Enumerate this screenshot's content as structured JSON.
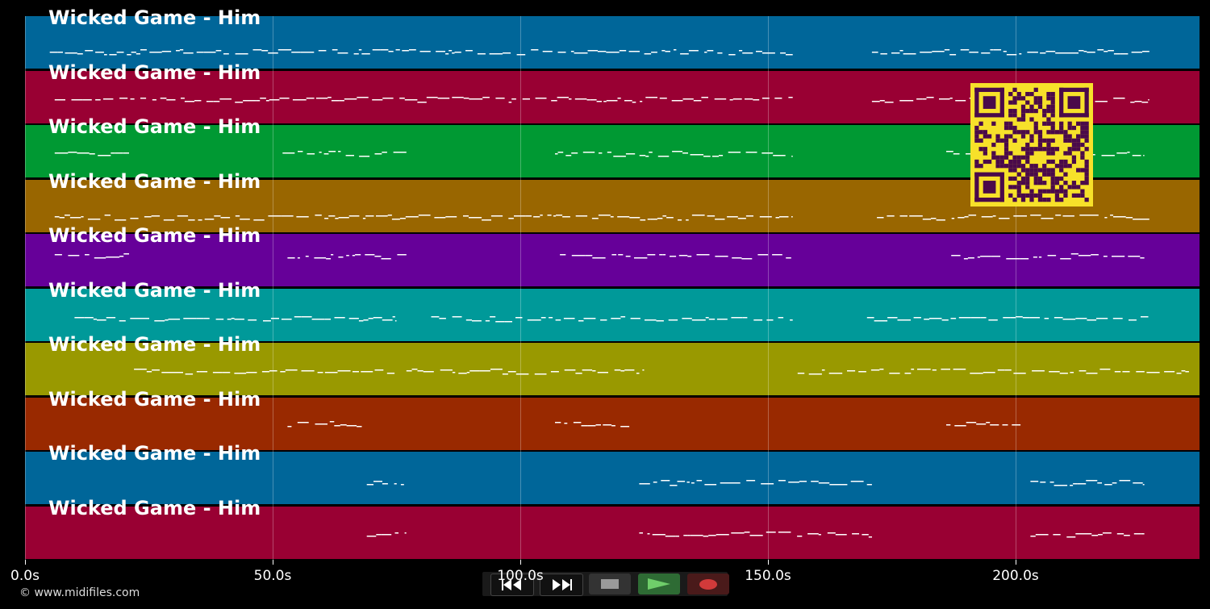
{
  "tracks": [
    {
      "title": "Wicked Game - Him",
      "color": "#006699"
    },
    {
      "title": "Wicked Game - Him",
      "color": "#990033"
    },
    {
      "title": "Wicked Game - Him",
      "color": "#009933"
    },
    {
      "title": "Wicked Game - Him",
      "color": "#996600"
    },
    {
      "title": "Wicked Game - Him",
      "color": "#660099"
    },
    {
      "title": "Wicked Game - Him",
      "color": "#009999"
    },
    {
      "title": "Wicked Game - Him",
      "color": "#999900"
    },
    {
      "title": "Wicked Game - Him",
      "color": "#992900"
    },
    {
      "title": "Wicked Game - Him",
      "color": "#006699"
    },
    {
      "title": "Wicked Game - Him",
      "color": "#990033"
    }
  ],
  "x_axis": {
    "ticks": [
      "0.0s",
      "50.0s",
      "100.0s",
      "150.0s",
      "200.0s"
    ],
    "tick_values": [
      0,
      50,
      100,
      150,
      200
    ],
    "max_seconds": 237
  },
  "copyright": "© www.midifiles.com",
  "transport": {
    "buttons": [
      {
        "name": "rewind",
        "icon": "rewind-icon"
      },
      {
        "name": "fast-forward",
        "icon": "fast-forward-icon"
      },
      {
        "name": "stop",
        "icon": "stop-icon"
      },
      {
        "name": "play",
        "icon": "play-icon"
      },
      {
        "name": "record",
        "icon": "record-icon"
      }
    ]
  },
  "qr_code": {
    "icon": "qr-code-icon",
    "color": "#f7e12a",
    "module_color": "#4a0a4a"
  }
}
